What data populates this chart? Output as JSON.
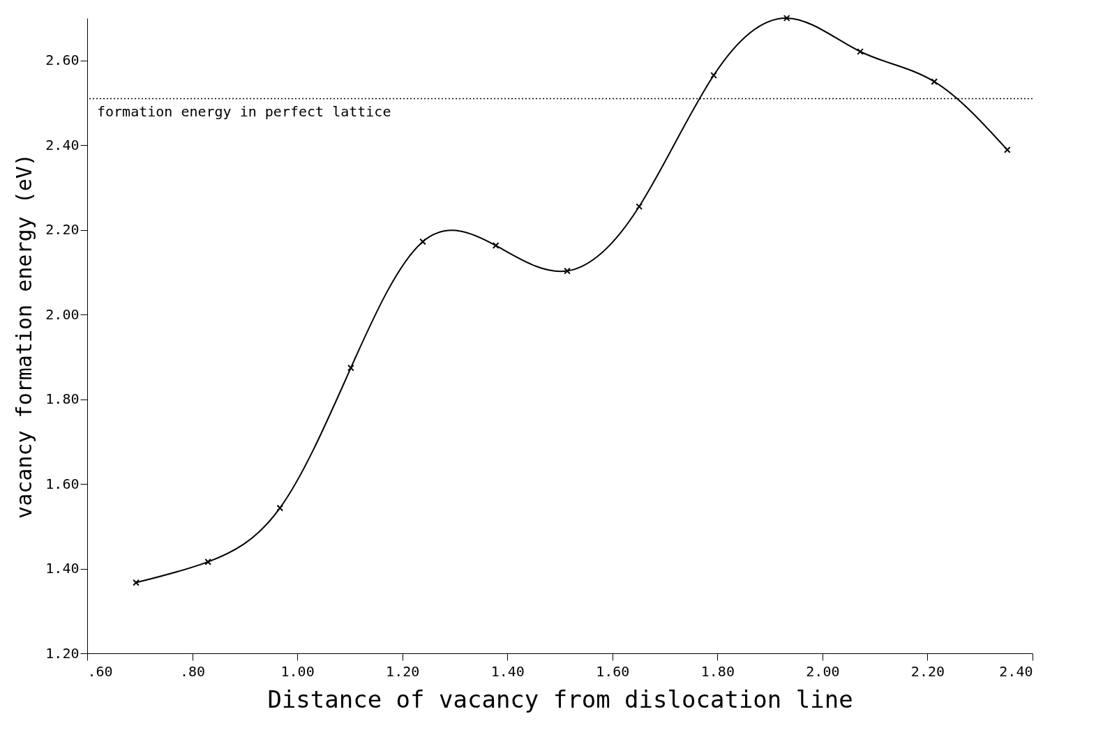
{
  "chart_data": {
    "type": "line",
    "xlabel": "Distance of vacancy from dislocation line",
    "ylabel": "vacancy formation energy (eV)",
    "x": [
      0.693,
      0.83,
      0.967,
      1.102,
      1.239,
      1.378,
      1.514,
      1.651,
      1.793,
      1.932,
      2.072,
      2.213,
      2.352
    ],
    "series": [
      {
        "color": "#000000",
        "values": [
          1.367,
          1.416,
          1.543,
          1.874,
          2.172,
          2.163,
          2.103,
          2.255,
          2.565,
          2.7,
          2.621,
          2.55,
          2.389
        ]
      }
    ],
    "xlim": [
      0.6,
      2.4
    ],
    "xticks": [
      {
        "value": 0.6,
        "label": ".60"
      },
      {
        "value": 0.8,
        "label": ".80"
      },
      {
        "value": 1.0,
        "label": "1.00"
      },
      {
        "value": 1.2,
        "label": "1.20"
      },
      {
        "value": 1.4,
        "label": "1.40"
      },
      {
        "value": 1.6,
        "label": "1.60"
      },
      {
        "value": 1.8,
        "label": "1.80"
      },
      {
        "value": 2.0,
        "label": "2.00"
      },
      {
        "value": 2.2,
        "label": "2.20"
      },
      {
        "value": 2.4,
        "label": "2.40"
      }
    ],
    "ylim": [
      1.2,
      2.7
    ],
    "yticks": [
      {
        "value": 1.2,
        "label": "1.20"
      },
      {
        "value": 1.4,
        "label": "1.40"
      },
      {
        "value": 1.6,
        "label": "1.60"
      },
      {
        "value": 1.8,
        "label": "1.80"
      },
      {
        "value": 2.0,
        "label": "2.00"
      },
      {
        "value": 2.2,
        "label": "2.20"
      },
      {
        "value": 2.4,
        "label": "2.40"
      },
      {
        "value": 2.6,
        "label": "2.60"
      }
    ],
    "ref_lines": [
      {
        "axis": "y",
        "value": 2.51,
        "label": "formation energy in perfect lattice",
        "line_style": "dotted"
      }
    ],
    "marker": "cross",
    "line_style": "solid",
    "grid": false
  }
}
